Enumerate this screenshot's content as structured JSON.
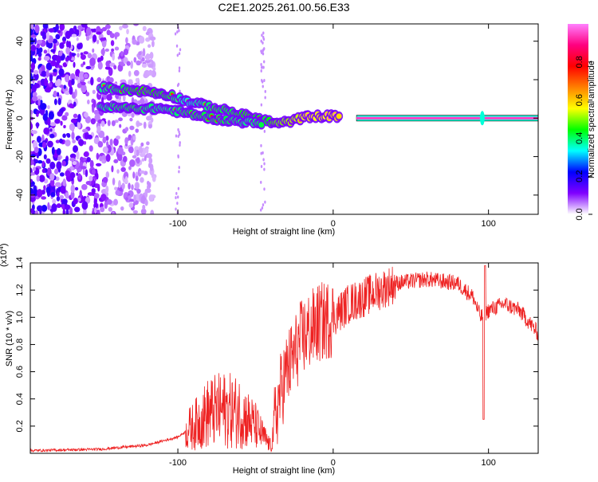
{
  "title": "C2E1.2025.261.00.56.E33",
  "chart_data": [
    {
      "type": "heatmap",
      "name": "spectrogram",
      "xlabel": "Height of straight line (km)",
      "ylabel": "Frequency (Hz)",
      "xlim": [
        -195,
        132
      ],
      "ylim": [
        -50,
        49
      ],
      "xticks": [
        -100,
        0,
        100
      ],
      "yticks": [
        -40,
        -20,
        0,
        20,
        40
      ],
      "colorbar": {
        "label": "Normalized spectral amplitude",
        "range": [
          0,
          1
        ],
        "ticks": [
          0.0,
          0.2,
          0.4,
          0.6,
          0.8
        ],
        "colors": [
          "#ffffff",
          "#8000ff",
          "#0000ff",
          "#00ffff",
          "#00ff00",
          "#ffff00",
          "#ff8000",
          "#ff0000",
          "#ff0080",
          "#ff80ff"
        ]
      },
      "track": [
        {
          "x": -150,
          "y": 16,
          "v": 0.55
        },
        {
          "x": -135,
          "y": 15,
          "v": 0.6
        },
        {
          "x": -120,
          "y": 14,
          "v": 0.65
        },
        {
          "x": -105,
          "y": 12,
          "v": 0.6
        },
        {
          "x": -95,
          "y": 9,
          "v": 0.5
        },
        {
          "x": -85,
          "y": 7,
          "v": 0.55
        },
        {
          "x": -75,
          "y": 5,
          "v": 0.6
        },
        {
          "x": -65,
          "y": 3,
          "v": 0.6
        },
        {
          "x": -55,
          "y": 1,
          "v": 0.65
        },
        {
          "x": -45,
          "y": -1,
          "v": 0.6
        },
        {
          "x": -35,
          "y": -3,
          "v": 0.7
        },
        {
          "x": -25,
          "y": -1,
          "v": 0.75
        },
        {
          "x": -15,
          "y": 1,
          "v": 0.8
        },
        {
          "x": -5,
          "y": 1,
          "v": 0.8
        },
        {
          "x": 5,
          "y": 1,
          "v": 0.85
        }
      ],
      "track2": [
        {
          "x": -150,
          "y": 6,
          "v": 0.55
        },
        {
          "x": -130,
          "y": 5,
          "v": 0.6
        },
        {
          "x": -110,
          "y": 5,
          "v": 0.55
        },
        {
          "x": -90,
          "y": 2,
          "v": 0.6
        },
        {
          "x": -70,
          "y": -1,
          "v": 0.6
        },
        {
          "x": -55,
          "y": -2,
          "v": 0.55
        },
        {
          "x": -45,
          "y": -3,
          "v": 0.6
        }
      ],
      "line": {
        "x_start": 15,
        "x_end": 132,
        "y": 0,
        "v": 0.95
      },
      "spike": {
        "x": 96,
        "y": 0
      }
    },
    {
      "type": "line",
      "name": "snr",
      "xlabel": "Height of straight line (km)",
      "ylabel": "SNR (10 * v/v)",
      "scale_label": "(x10",
      "scale_exp": "4",
      "scale_close": ")",
      "xlim": [
        -195,
        132
      ],
      "ylim": [
        0,
        1.4
      ],
      "xticks": [
        -100,
        0,
        100
      ],
      "yticks": [
        0.2,
        0.4,
        0.6,
        0.8,
        1.0,
        1.2,
        1.4
      ],
      "color": "#ee2222",
      "envelope": [
        {
          "x": -195,
          "y": 0.02
        },
        {
          "x": -150,
          "y": 0.03
        },
        {
          "x": -120,
          "y": 0.06
        },
        {
          "x": -100,
          "y": 0.12
        },
        {
          "x": -90,
          "y": 0.2
        },
        {
          "x": -80,
          "y": 0.3
        },
        {
          "x": -70,
          "y": 0.32
        },
        {
          "x": -60,
          "y": 0.3
        },
        {
          "x": -50,
          "y": 0.2
        },
        {
          "x": -40,
          "y": 0.05
        },
        {
          "x": -35,
          "y": 0.4
        },
        {
          "x": -30,
          "y": 0.6
        },
        {
          "x": -20,
          "y": 0.85
        },
        {
          "x": -10,
          "y": 0.95
        },
        {
          "x": 0,
          "y": 1.0
        },
        {
          "x": 10,
          "y": 1.1
        },
        {
          "x": 20,
          "y": 1.15
        },
        {
          "x": 30,
          "y": 1.2
        },
        {
          "x": 40,
          "y": 1.25
        },
        {
          "x": 60,
          "y": 1.28
        },
        {
          "x": 80,
          "y": 1.25
        },
        {
          "x": 90,
          "y": 1.15
        },
        {
          "x": 95,
          "y": 1.0
        },
        {
          "x": 100,
          "y": 1.05
        },
        {
          "x": 110,
          "y": 1.1
        },
        {
          "x": 120,
          "y": 1.05
        },
        {
          "x": 132,
          "y": 0.88
        }
      ],
      "dip": {
        "x": 97,
        "y": 0.25
      },
      "peak": {
        "x": 97,
        "y": 1.38
      }
    }
  ]
}
